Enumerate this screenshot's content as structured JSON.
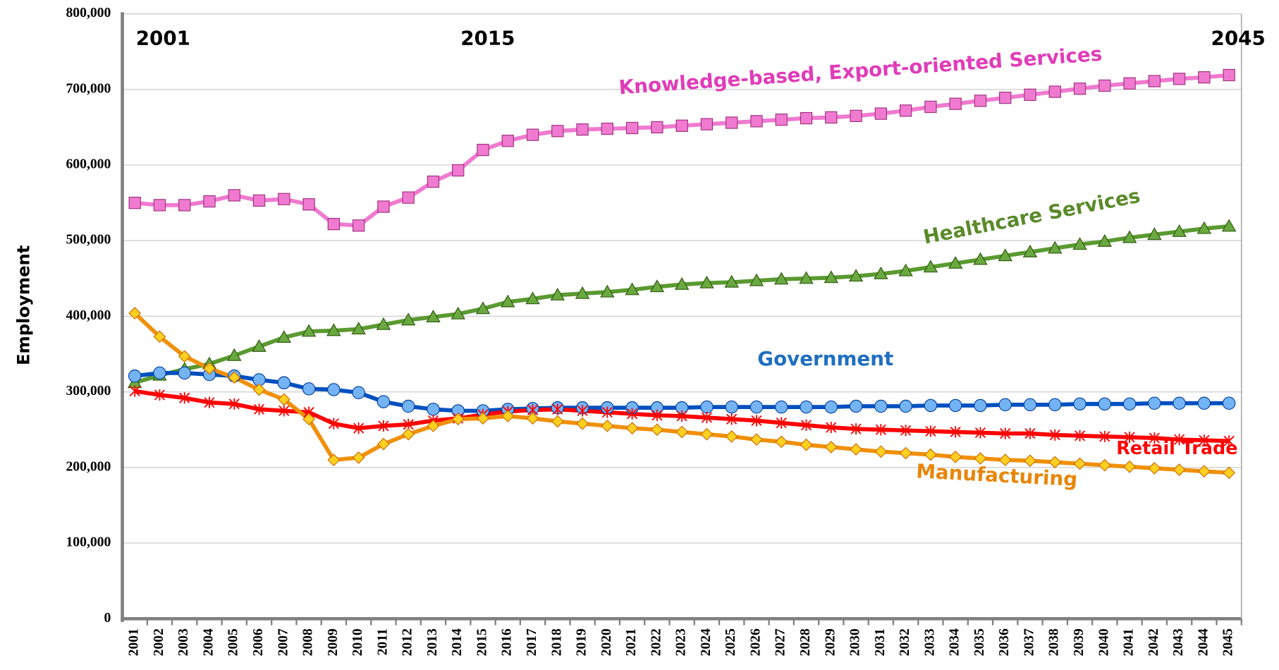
{
  "chart_data": {
    "type": "line",
    "y_label": "Employment",
    "annotations": [
      "2001",
      "2015",
      "2045"
    ],
    "categories": [
      "2001",
      "2002",
      "2003",
      "2004",
      "2005",
      "2006",
      "2007",
      "2008",
      "2009",
      "2010",
      "2011",
      "2012",
      "2013",
      "2014",
      "2015",
      "2016",
      "2017",
      "2018",
      "2019",
      "2020",
      "2021",
      "2022",
      "2023",
      "2024",
      "2025",
      "2026",
      "2027",
      "2028",
      "2029",
      "2030",
      "2031",
      "2032",
      "2033",
      "2034",
      "2035",
      "2036",
      "2037",
      "2038",
      "2039",
      "2040",
      "2041",
      "2042",
      "2043",
      "2044",
      "2045"
    ],
    "ylim": [
      0,
      800000
    ],
    "yticks": [
      0,
      {
        "value": 100000,
        "label": "100,000"
      },
      {
        "value": 200000,
        "label": "200,000"
      },
      {
        "value": 300000,
        "label": "300,000"
      },
      {
        "value": 400000,
        "label": "400,000"
      },
      {
        "value": 500000,
        "label": "500,000"
      },
      {
        "value": 600000,
        "label": "600,000"
      },
      {
        "value": 700000,
        "label": "700,000"
      },
      {
        "value": 800000,
        "label": "800,000"
      }
    ],
    "grid": true,
    "series": [
      {
        "name": "Knowledge-based, Export-oriented Services",
        "color": "#f07ad0",
        "marker": "square",
        "marker_color": "#f07ad0",
        "label_color": "#e03cb8",
        "values": [
          550000,
          547000,
          547000,
          552000,
          560000,
          553000,
          555000,
          548000,
          522000,
          520000,
          545000,
          557000,
          578000,
          593000,
          620000,
          632000,
          640000,
          645000,
          647000,
          648000,
          649000,
          650000,
          652000,
          654000,
          656000,
          658000,
          660000,
          662000,
          663000,
          665000,
          668000,
          672000,
          677000,
          681000,
          685000,
          689000,
          693000,
          697000,
          701000,
          705000,
          708000,
          711000,
          714000,
          716000,
          719000
        ]
      },
      {
        "name": "Healthcare Services",
        "color": "#5a9a30",
        "marker": "triangle",
        "marker_color": "#6aa840",
        "label_color": "#5a8a2a",
        "values": [
          312000,
          322000,
          330000,
          337000,
          348000,
          360000,
          372000,
          380000,
          381000,
          383000,
          389000,
          395000,
          399000,
          403000,
          410000,
          419000,
          423000,
          428000,
          430000,
          432000,
          435000,
          439000,
          442000,
          444000,
          445000,
          447000,
          449000,
          450000,
          451000,
          453000,
          456000,
          460000,
          465000,
          470000,
          475000,
          480000,
          485000,
          490000,
          495000,
          499000,
          504000,
          508000,
          512000,
          516000,
          519000
        ]
      },
      {
        "name": "Government",
        "color": "#0050c0",
        "marker": "circle",
        "marker_color": "#74b4f4",
        "label_color": "#1f6fc0",
        "values": [
          321000,
          325000,
          325000,
          323000,
          321000,
          316000,
          312000,
          304000,
          303000,
          299000,
          287000,
          281000,
          277000,
          275000,
          275000,
          277000,
          278000,
          279000,
          279000,
          279000,
          279000,
          279000,
          279000,
          280000,
          280000,
          280000,
          280000,
          280000,
          280000,
          281000,
          281000,
          281000,
          282000,
          282000,
          282000,
          283000,
          283000,
          283000,
          284000,
          284000,
          284000,
          285000,
          285000,
          285000,
          285000
        ]
      },
      {
        "name": "Retail Trade",
        "color": "#ff0000",
        "marker": "star",
        "marker_color": "#ff0000",
        "label_color": "#ff0000",
        "values": [
          301000,
          296000,
          292000,
          286000,
          284000,
          277000,
          275000,
          273000,
          258000,
          252000,
          255000,
          257000,
          262000,
          265000,
          270000,
          274000,
          276000,
          277000,
          275000,
          273000,
          271000,
          269000,
          268000,
          266000,
          264000,
          262000,
          259000,
          256000,
          253000,
          251000,
          250000,
          249000,
          248000,
          247000,
          246000,
          245000,
          245000,
          243000,
          242000,
          241000,
          240000,
          239000,
          237000,
          236000,
          235000
        ]
      },
      {
        "name": "Manufacturing",
        "color": "#f0900a",
        "marker": "diamond",
        "marker_color": "#ffd020",
        "label_color": "#e8860a",
        "values": [
          404000,
          373000,
          347000,
          331000,
          319000,
          303000,
          290000,
          264000,
          210000,
          213000,
          231000,
          244000,
          255000,
          264000,
          265000,
          268000,
          265000,
          261000,
          258000,
          255000,
          252000,
          250000,
          247000,
          244000,
          241000,
          237000,
          234000,
          230000,
          227000,
          224000,
          221000,
          219000,
          217000,
          214000,
          212000,
          210000,
          209000,
          207000,
          205000,
          203000,
          201000,
          199000,
          197000,
          195000,
          193000
        ]
      }
    ]
  }
}
